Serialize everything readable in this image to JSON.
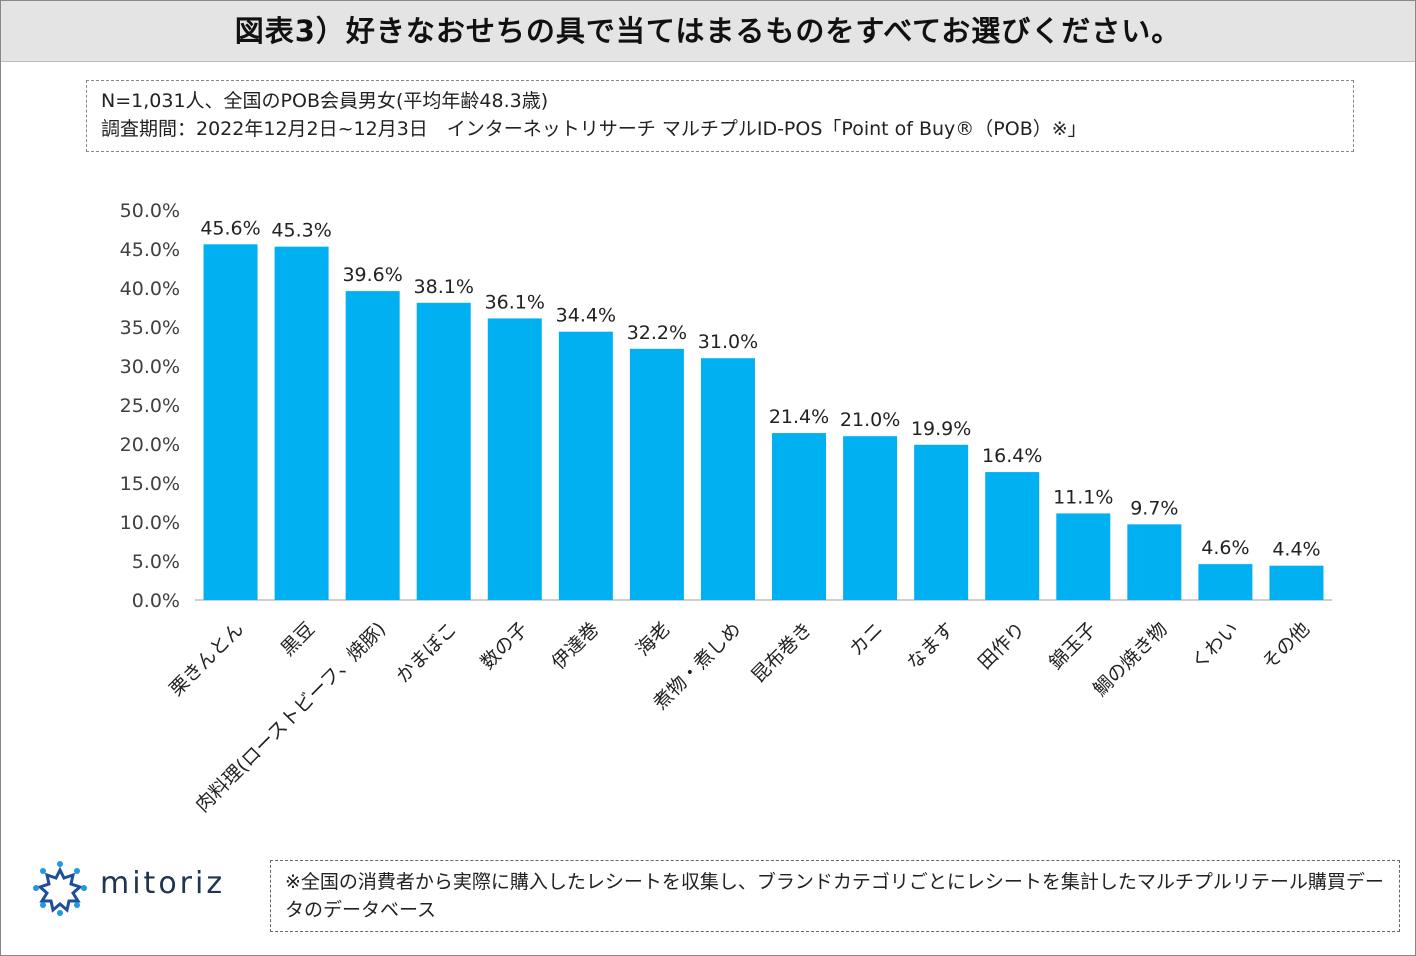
{
  "title": "図表3）好きなおせちの具で当てはまるものをすべてお選びください。",
  "info": {
    "line1": "N=1,031人、全国のPOB会員男女(平均年齢48.3歳)",
    "line2": "調査期間：2022年12月2日~12月3日　インターネットリサーチ マルチプルID-POS「Point of Buy®（POB）※」"
  },
  "note": "※全国の消費者から実際に購入したレシートを収集し、ブランドカテゴリごとにレシートを集計したマルチプルリテール購買データのデータベース",
  "logo": {
    "text": "mitoriz",
    "icon": "sun-dots-icon"
  },
  "colors": {
    "bar": "#00b0f0",
    "axis": "#bfbfbf",
    "title_bg": "#e4e4e4"
  },
  "chart_data": {
    "type": "bar",
    "title": "",
    "xlabel": "",
    "ylabel": "",
    "ylim": [
      0,
      50
    ],
    "yticks": [
      "0.0%",
      "5.0%",
      "10.0%",
      "15.0%",
      "20.0%",
      "25.0%",
      "30.0%",
      "35.0%",
      "40.0%",
      "45.0%",
      "50.0%"
    ],
    "categories": [
      "栗きんとん",
      "黒豆",
      "肉料理(ローストビーフ、焼豚)",
      "かまぼこ",
      "数の子",
      "伊達巻",
      "海老",
      "煮物・煮しめ",
      "昆布巻き",
      "カニ",
      "なます",
      "田作り",
      "錦玉子",
      "鯛の焼き物",
      "くわい",
      "その他"
    ],
    "values": [
      45.6,
      45.3,
      39.6,
      38.1,
      36.1,
      34.4,
      32.2,
      31.0,
      21.4,
      21.0,
      19.9,
      16.4,
      11.1,
      9.7,
      4.6,
      4.4
    ],
    "labels": [
      "45.6%",
      "45.3%",
      "39.6%",
      "38.1%",
      "36.1%",
      "34.4%",
      "32.2%",
      "31.0%",
      "21.4%",
      "21.0%",
      "19.9%",
      "16.4%",
      "11.1%",
      "9.7%",
      "4.6%",
      "4.4%"
    ],
    "grid": false
  }
}
